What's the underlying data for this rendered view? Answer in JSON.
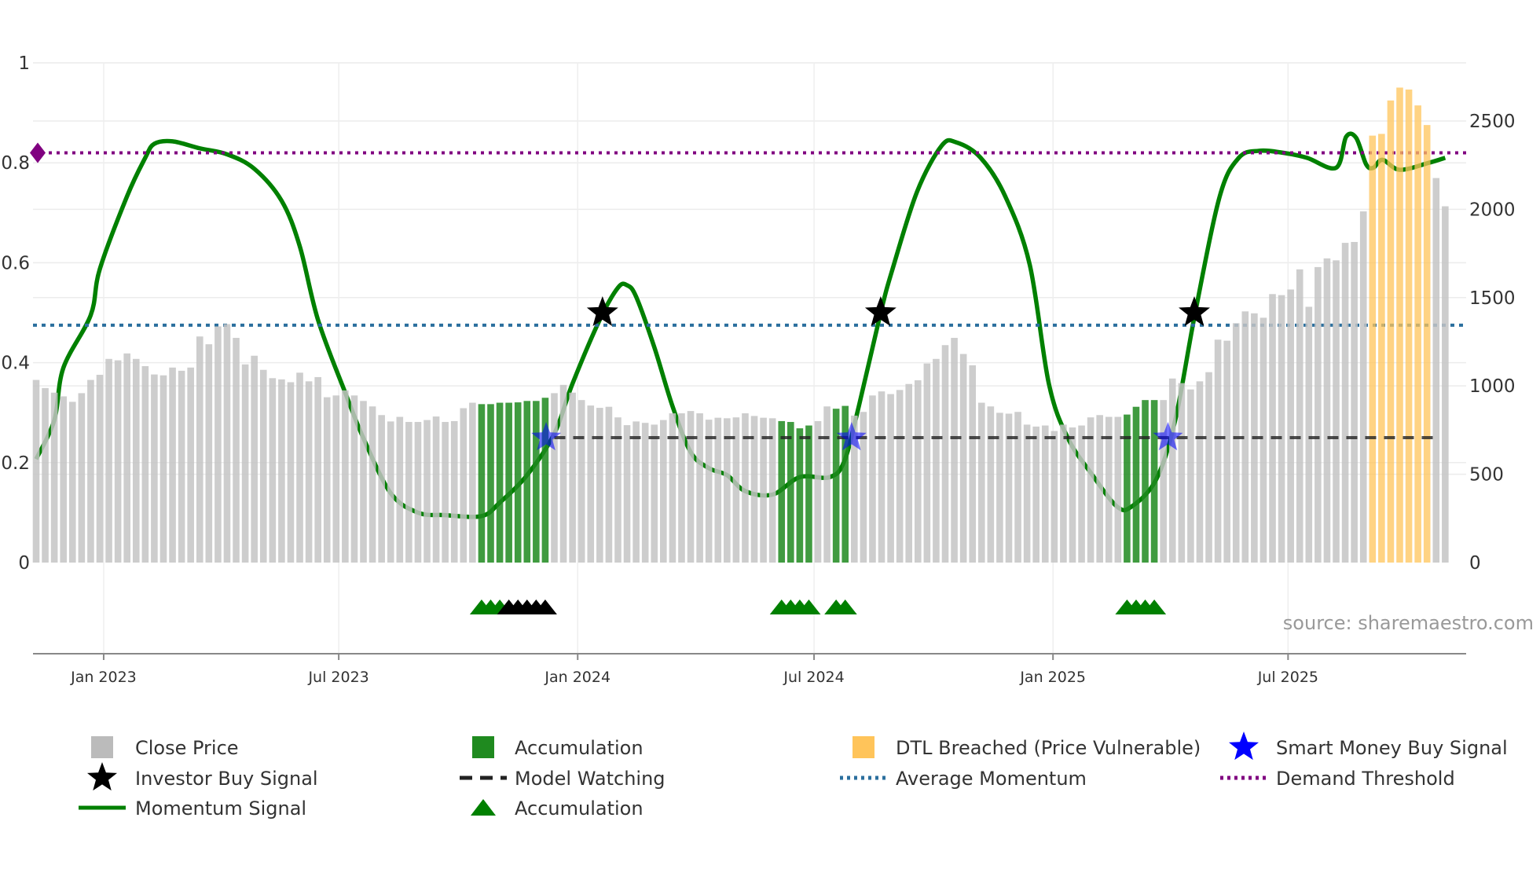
{
  "chart_data": {
    "type": "bar",
    "title": "",
    "source": "source: sharemaestro.com",
    "x": {
      "start_date": "2022-11-10",
      "step": "weekly",
      "ticks": [
        {
          "date": "2023-01-01",
          "label": "Jan 2023"
        },
        {
          "date": "2023-07-01",
          "label": "Jul 2023"
        },
        {
          "date": "2024-01-01",
          "label": "Jan 2024"
        },
        {
          "date": "2024-07-01",
          "label": "Jul 2024"
        },
        {
          "date": "2025-01-01",
          "label": "Jan 2025"
        },
        {
          "date": "2025-07-01",
          "label": "Jul 2025"
        }
      ]
    },
    "y_left": {
      "ylim": [
        0,
        1
      ],
      "ticks": [
        0,
        0.2,
        0.4,
        0.6,
        0.8,
        1
      ],
      "labels": [
        "0",
        "0.2",
        "0.4",
        "0.6",
        "0.8",
        "1"
      ]
    },
    "y_right": {
      "ylim": [
        0,
        2829
      ],
      "ticks": [
        0,
        500,
        1000,
        1500,
        2000,
        2500
      ],
      "labels": [
        "0",
        "500",
        "1000",
        "1500",
        "2000",
        "2500"
      ]
    },
    "close_price": [
      1034,
      988,
      962,
      941,
      910,
      959,
      1034,
      1063,
      1153,
      1145,
      1184,
      1153,
      1112,
      1065,
      1060,
      1104,
      1086,
      1104,
      1280,
      1236,
      1337,
      1350,
      1272,
      1122,
      1171,
      1091,
      1044,
      1037,
      1021,
      1075,
      1026,
      1050,
      936,
      946,
      975,
      946,
      915,
      884,
      835,
      799,
      825,
      796,
      796,
      807,
      827,
      796,
      801,
      874,
      905,
      897,
      897,
      905,
      905,
      907,
      915,
      915,
      933,
      959,
      1006,
      962,
      920,
      889,
      876,
      882,
      822,
      778,
      799,
      791,
      781,
      807,
      845,
      845,
      858,
      845,
      809,
      820,
      817,
      822,
      845,
      830,
      820,
      817,
      801,
      796,
      760,
      776,
      801,
      884,
      871,
      887,
      832,
      853,
      946,
      969,
      954,
      977,
      1011,
      1032,
      1127,
      1153,
      1231,
      1272,
      1181,
      1117,
      905,
      884,
      848,
      843,
      853,
      781,
      770,
      776,
      745,
      781,
      765,
      776,
      822,
      835,
      825,
      825,
      838,
      882,
      920,
      920,
      920,
      1042,
      1016,
      980,
      1026,
      1078,
      1262,
      1256,
      1355,
      1422,
      1411,
      1386,
      1520,
      1514,
      1546,
      1660,
      1448,
      1673,
      1722,
      1711,
      1810,
      1815,
      1988,
      2417,
      2427,
      2616,
      2689,
      2678,
      2588,
      2477,
      2177,
      2017
    ],
    "accumulation_bars": [
      49,
      50,
      51,
      52,
      53,
      54,
      55,
      56,
      82,
      83,
      84,
      85,
      88,
      89,
      120,
      121,
      122,
      123
    ],
    "dtl_breached_bars": [
      147,
      148,
      149,
      150,
      151,
      152,
      153
    ],
    "momentum": {
      "week_index": [
        0,
        2,
        3,
        6,
        7,
        10,
        12,
        13,
        15,
        18,
        21,
        24,
        27,
        29,
        31,
        34,
        36,
        39,
        42,
        45,
        49,
        51,
        54,
        57,
        59,
        62,
        64,
        65,
        66,
        68,
        70,
        72,
        74,
        76,
        78,
        81,
        84,
        87.3,
        88.9,
        90.5,
        92.9,
        94.2,
        96.9,
        99.6,
        101.2,
        103.9,
        106.6,
        109.3,
        111.4,
        113.5,
        116.2,
        118.9,
        120.5,
        123.2,
        125.3,
        127.5,
        130.2,
        132.3,
        134.5,
        137.2,
        139.8,
        143,
        144.1,
        145.2,
        146.3,
        147.1,
        148.1,
        150,
        153.2,
        155
      ],
      "values": [
        0.207,
        0.285,
        0.39,
        0.495,
        0.587,
        0.733,
        0.81,
        0.838,
        0.843,
        0.829,
        0.817,
        0.788,
        0.724,
        0.633,
        0.486,
        0.34,
        0.249,
        0.139,
        0.1,
        0.095,
        0.093,
        0.12,
        0.175,
        0.258,
        0.358,
        0.486,
        0.55,
        0.555,
        0.532,
        0.431,
        0.313,
        0.221,
        0.189,
        0.175,
        0.143,
        0.136,
        0.171,
        0.171,
        0.203,
        0.313,
        0.5,
        0.587,
        0.742,
        0.834,
        0.841,
        0.81,
        0.733,
        0.596,
        0.358,
        0.249,
        0.175,
        0.112,
        0.112,
        0.166,
        0.285,
        0.5,
        0.733,
        0.81,
        0.824,
        0.82,
        0.81,
        0.79,
        0.852,
        0.85,
        0.797,
        0.79,
        0.806,
        0.786,
        0.8,
        0.81
      ]
    },
    "demand_threshold": 0.82,
    "average_momentum": 0.475,
    "model_watching": {
      "value": 0.25,
      "from_week": 57,
      "to_week": 154
    },
    "investor_buy_signals": {
      "week_index": [
        62.3,
        92.9,
        127.4
      ],
      "value": 0.5
    },
    "smart_money_buy_signals": {
      "week_index": [
        56.1,
        89.7,
        124.5
      ],
      "value": 0.25
    },
    "accumulation_markers": {
      "green": [
        49,
        50,
        51,
        82,
        83,
        84,
        85,
        88,
        89,
        120,
        121,
        122,
        123
      ],
      "black": [
        52,
        53,
        54,
        55,
        56
      ]
    },
    "colors": {
      "close": "#c4c4c4",
      "accumulation": "#1f8a1f",
      "dtl": "#ffc45a",
      "momentum": "#008000",
      "average": "#2b6f9e",
      "demand": "#800080",
      "smart_money": "#0000ff",
      "watching": "#222222"
    },
    "legend": [
      {
        "label": "Close Price",
        "icon": "gray-square"
      },
      {
        "label": "Accumulation",
        "icon": "green-square"
      },
      {
        "label": "DTL Breached (Price Vulnerable)",
        "icon": "orange-square"
      },
      {
        "label": "Smart Money Buy Signal",
        "icon": "blue-star"
      },
      {
        "label": "Investor Buy Signal",
        "icon": "black-star"
      },
      {
        "label": "Model Watching",
        "icon": "black-dashed-line"
      },
      {
        "label": "Average Momentum",
        "icon": "blue-dotted-line"
      },
      {
        "label": "Demand Threshold",
        "icon": "purple-dotted-line"
      },
      {
        "label": "Momentum Signal",
        "icon": "green-line"
      },
      {
        "label": "Accumulation",
        "icon": "green-triangle"
      }
    ]
  }
}
